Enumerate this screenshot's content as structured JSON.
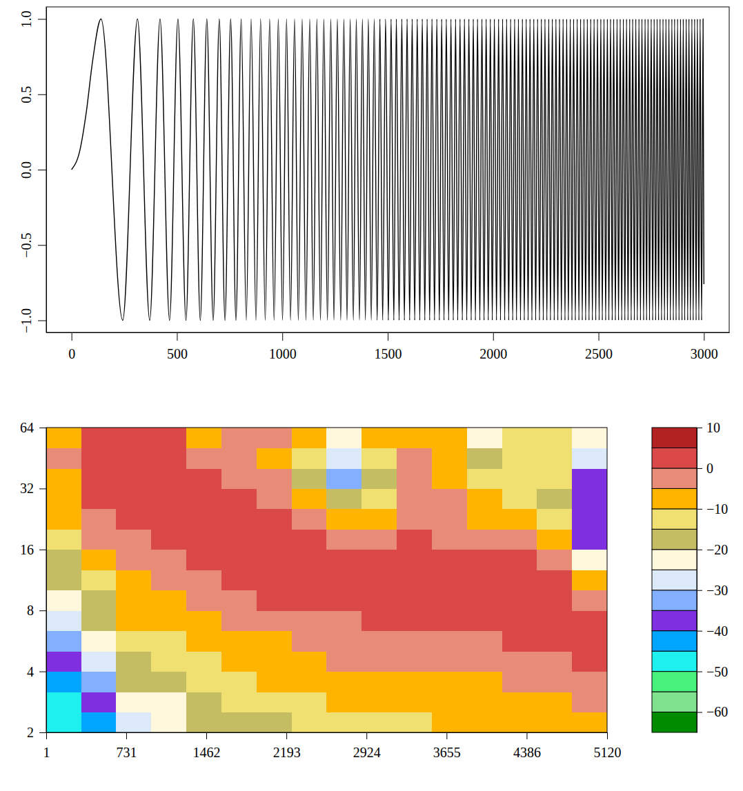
{
  "chart_data": [
    {
      "type": "line",
      "x": [
        0,
        40,
        70,
        100,
        140,
        243,
        313,
        371,
        420,
        465,
        505,
        543,
        578,
        611,
        642,
        672,
        701,
        728,
        755,
        780,
        805,
        829,
        852,
        875,
        897,
        919,
        940,
        961,
        981,
        1001,
        1020,
        1039,
        1058,
        1076,
        1094,
        1112,
        1130,
        1147,
        1164,
        1181,
        1197,
        1214,
        1230,
        1245,
        1261,
        1277,
        1292,
        1307,
        1322,
        1337,
        1351,
        1366,
        1380,
        1394,
        1408,
        1422,
        1436,
        1450,
        1463,
        1476,
        1490,
        1503,
        1516,
        1529,
        1541,
        1554,
        1567,
        1579,
        1592,
        1604,
        1616,
        1628,
        1640,
        1652,
        1664,
        1676,
        1687,
        1699,
        1710,
        1722,
        1733,
        1745,
        1756,
        1767,
        1778,
        1789,
        1800,
        1811,
        1822,
        1832,
        1843,
        1854,
        1864,
        1875,
        1885,
        1896,
        1906,
        1916,
        1926,
        1937,
        1947,
        1957,
        1967,
        1977,
        1987,
        1996,
        2006,
        2016,
        2026,
        2035,
        2045,
        2055,
        2064,
        2074,
        2083,
        2093,
        2102,
        2111,
        2120,
        2130,
        2139,
        2148,
        2157,
        2166,
        2175,
        2184,
        2193,
        2202,
        2211,
        2220,
        2229,
        2238,
        2246,
        2255,
        2264,
        2272,
        2281,
        2290,
        2298,
        2307,
        2315,
        2324,
        2332,
        2341,
        2349,
        2357,
        2366,
        2374,
        2382,
        2390,
        2399,
        2407,
        2415,
        2423,
        2431,
        2439,
        2447,
        2455,
        2463,
        2471,
        2479,
        2487,
        2495,
        2503,
        2511,
        2518,
        2526,
        2534,
        2542,
        2549,
        2557,
        2565,
        2572,
        2580,
        2588,
        2595,
        2603,
        2610,
        2618,
        2625,
        2633,
        2640,
        2648,
        2655,
        2662,
        2670,
        2677,
        2684,
        2692,
        2699,
        2706,
        2714,
        2721,
        2728,
        2735,
        2742,
        2750,
        2757,
        2764,
        2771,
        2778,
        2785,
        2792,
        2799,
        2806,
        2813,
        2820,
        2827,
        2834,
        2841,
        2848,
        2855,
        2861,
        2868,
        2875,
        2882,
        2889,
        2896,
        2902,
        2909,
        2916,
        2923,
        2929,
        2936,
        2943,
        2949,
        2956,
        2963,
        2969,
        2976,
        2982,
        2989,
        2996,
        3000
      ],
      "series": [
        {
          "color": "#000000",
          "values": [
            0,
            0.13,
            0.38,
            0.72,
            1,
            -1,
            1,
            -1,
            1,
            -1,
            1,
            -1,
            1,
            -1,
            1,
            -1,
            1,
            -1,
            1,
            -1,
            1,
            -1,
            1,
            -1,
            1,
            -1,
            1,
            -1,
            1,
            -1,
            1,
            -1,
            1,
            -1,
            1,
            -1,
            1,
            -1,
            1,
            -1,
            1,
            -1,
            1,
            -1,
            1,
            -1,
            1,
            -1,
            1,
            -1,
            1,
            -1,
            1,
            -1,
            1,
            -1,
            1,
            -1,
            1,
            -1,
            1,
            -1,
            1,
            -1,
            1,
            -1,
            1,
            -1,
            1,
            -1,
            1,
            -1,
            1,
            -1,
            1,
            -1,
            1,
            -1,
            1,
            -1,
            1,
            -1,
            1,
            -1,
            1,
            -1,
            1,
            -1,
            1,
            -1,
            1,
            -1,
            1,
            -1,
            1,
            -1,
            1,
            -1,
            1,
            -1,
            1,
            -1,
            1,
            -1,
            1,
            -1,
            1,
            -1,
            1,
            -1,
            1,
            -1,
            1,
            -1,
            1,
            -1,
            1,
            -1,
            1,
            -1,
            1,
            -1,
            1,
            -1,
            1,
            -1,
            1,
            -1,
            1,
            -1,
            1,
            -1,
            1,
            -1,
            1,
            -1,
            1,
            -1,
            1,
            -1,
            1,
            -1,
            1,
            -1,
            1,
            -1,
            1,
            -1,
            1,
            -1,
            1,
            -1,
            1,
            -1,
            1,
            -1,
            1,
            -1,
            1,
            -1,
            1,
            -1,
            1,
            -1,
            1,
            -1,
            1,
            -1,
            1,
            -1,
            1,
            -1,
            1,
            -1,
            1,
            -1,
            1,
            -1,
            1,
            -1,
            1,
            -1,
            1,
            -1,
            1,
            -1,
            1,
            -1,
            1,
            -1,
            1,
            -1,
            1,
            -1,
            1,
            -1,
            1,
            -1,
            1,
            -1,
            1,
            -1,
            1,
            -1,
            1,
            -1,
            1,
            -1,
            1,
            -1,
            1,
            -1,
            1,
            -1,
            1,
            -1,
            1,
            -1,
            1,
            -1,
            1,
            -1,
            1,
            -1,
            1,
            -1,
            1,
            -1,
            1,
            -1,
            1,
            -1,
            1,
            -0.76
          ]
        }
      ],
      "xlim": [
        -120,
        3120
      ],
      "xticks": [
        0,
        500,
        1000,
        1500,
        2000,
        2500,
        3000
      ],
      "ylim": [
        -1.08,
        1.08
      ],
      "yticks": [
        {
          "value": -1,
          "label": "−1.0"
        },
        {
          "value": -0.5,
          "label": "−0.5"
        },
        {
          "value": 0,
          "label": "0.0"
        },
        {
          "value": 0.5,
          "label": "0.5"
        },
        {
          "value": 1,
          "label": "1.0"
        }
      ]
    },
    {
      "type": "heatmap",
      "log": "y",
      "x_edges": [
        1,
        320,
        640,
        960,
        1280,
        1600,
        1920,
        2240,
        2560,
        2880,
        3200,
        3520,
        3840,
        4160,
        4480,
        4800,
        5120
      ],
      "y_edges": [
        2,
        2.52,
        3.17,
        4,
        5.04,
        6.35,
        8,
        10.08,
        12.7,
        16,
        20.16,
        25.4,
        32,
        40.32,
        50.8,
        64
      ],
      "values": [
        [
          -50,
          -42,
          -28,
          -24,
          -20,
          -18,
          -16,
          -13,
          -12,
          -12,
          -11,
          -10,
          -10,
          -9,
          -8,
          -7
        ],
        [
          -47,
          -38,
          -24,
          -21,
          -17,
          -15,
          -13,
          -11,
          -10,
          -10,
          -9,
          -8,
          -8,
          -7,
          -6,
          -4
        ],
        [
          -42,
          -33,
          -20,
          -18,
          -14,
          -12,
          -10,
          -9,
          -8,
          -7,
          -6,
          -6,
          -6,
          -5,
          -4,
          -1
        ],
        [
          -38,
          -28,
          -16,
          -15,
          -11,
          -10,
          -8,
          -6,
          -5,
          -4,
          -4,
          -4,
          -3,
          -2,
          -1,
          1
        ],
        [
          -33,
          -24,
          -13,
          -12,
          -9,
          -8,
          -6,
          -4,
          -3,
          -2,
          -2,
          -2,
          -1,
          0,
          1,
          2
        ],
        [
          -28,
          -20,
          -10,
          -10,
          -7,
          -5,
          -3,
          -2,
          -1,
          0,
          0,
          1,
          1,
          2,
          2,
          1
        ],
        [
          -24,
          -16,
          -8,
          -7,
          -4,
          -2,
          0,
          1,
          1,
          2,
          2,
          2,
          2,
          2,
          2,
          -3
        ],
        [
          -20,
          -12,
          -6,
          -5,
          -2,
          0,
          2,
          2,
          2,
          2,
          2,
          2,
          2,
          2,
          1,
          -10
        ],
        [
          -16,
          -8,
          -3,
          -2,
          1,
          2,
          2,
          2,
          2,
          2,
          2,
          1,
          1,
          0,
          -3,
          -22
        ],
        [
          -12,
          -5,
          -1,
          0,
          2,
          2,
          2,
          1,
          -3,
          -2,
          0,
          -1,
          -3,
          -4,
          -8,
          -38
        ],
        [
          -9,
          -2,
          1,
          2,
          2,
          2,
          1,
          -3,
          -10,
          -7,
          -2,
          -3,
          -6,
          -8,
          -15,
          -40
        ],
        [
          -7,
          1,
          2,
          3,
          2,
          1,
          -2,
          -10,
          -20,
          -12,
          -3,
          -5,
          -9,
          -11,
          -16,
          -38
        ],
        [
          -6,
          2,
          3,
          3,
          0,
          -1,
          -5,
          -16,
          -32,
          -16,
          -3,
          -7,
          -13,
          -13,
          -15,
          -36
        ],
        [
          -5,
          3,
          3,
          3,
          -3,
          -2,
          -6,
          -14,
          -28,
          -12,
          -4,
          -9,
          -18,
          -13,
          -14,
          -30
        ],
        [
          -6,
          3,
          3,
          2,
          -6,
          -3,
          -4,
          -10,
          -22,
          -8,
          -6,
          -9,
          -22,
          -12,
          -13,
          -22
        ]
      ],
      "xlim": [
        1,
        5120
      ],
      "xticks": [
        1,
        731,
        1462,
        2193,
        2924,
        3655,
        4386,
        5120
      ],
      "ylim": [
        2,
        64
      ],
      "yticks": [
        2,
        4,
        8,
        16,
        32,
        64
      ],
      "colorbar": {
        "levels": [
          -65,
          -60,
          -55,
          -50,
          -45,
          -40,
          -35,
          -30,
          -25,
          -20,
          -15,
          -10,
          -5,
          0,
          5,
          10
        ],
        "colors": [
          "#008B00",
          "#80E28C",
          "#48F07C",
          "#1EF0F0",
          "#00A5FF",
          "#7F2FE0",
          "#82AFFF",
          "#DCE9F8",
          "#FFF8DC",
          "#C4BD64",
          "#F0E072",
          "#FFB500",
          "#E88B77",
          "#DA4848",
          "#B22222"
        ],
        "ticks": [
          10,
          0,
          {
            "value": -10,
            "label": "−10"
          },
          {
            "value": -20,
            "label": "−20"
          },
          {
            "value": -30,
            "label": "−30"
          },
          {
            "value": -40,
            "label": "−40"
          },
          {
            "value": -50,
            "label": "−50"
          },
          {
            "value": -60,
            "label": "−60"
          }
        ]
      }
    }
  ]
}
